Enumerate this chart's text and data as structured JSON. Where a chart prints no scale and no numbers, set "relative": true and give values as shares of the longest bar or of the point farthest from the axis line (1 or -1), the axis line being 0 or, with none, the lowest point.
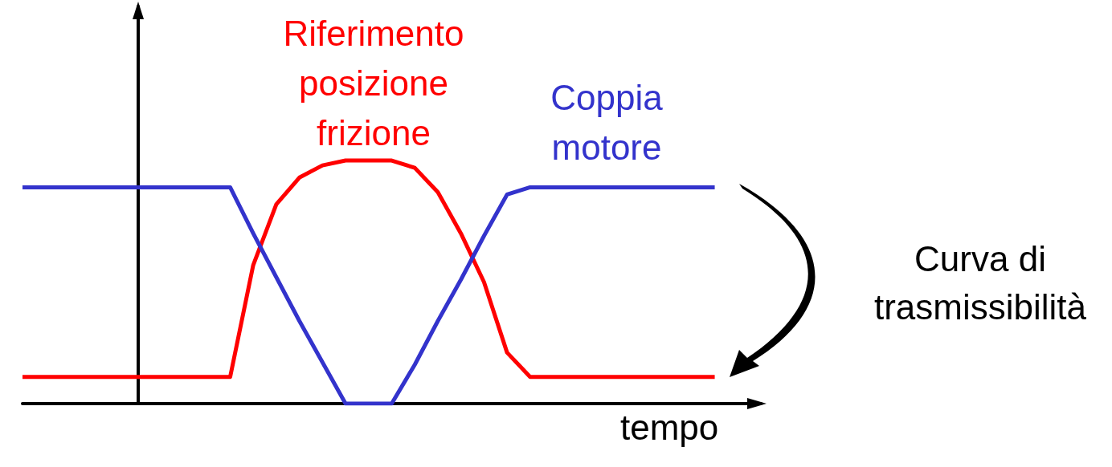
{
  "chart_data": {
    "type": "line",
    "relative": true,
    "xlabel": "tempo",
    "marker": "none",
    "categories": [
      null,
      null,
      null,
      null,
      null,
      null,
      null,
      null,
      null,
      null,
      null,
      null,
      null,
      null,
      null,
      null,
      null,
      null,
      null,
      null,
      null,
      null,
      null,
      null,
      null,
      null,
      null,
      null,
      null,
      null,
      null,
      null,
      null
    ],
    "series": [
      {
        "name": "Riferimento posizione frizione",
        "color": "#ff0000",
        "values": [
          0.11,
          0.11,
          0.11,
          0.11,
          0.11,
          0.11,
          0.11,
          0.11,
          0.11,
          0.11,
          0.57,
          0.82,
          0.93,
          0.98,
          1,
          1,
          1,
          0.97,
          0.87,
          0.7,
          0.5,
          0.21,
          0.11,
          0.11,
          0.11,
          0.11,
          0.11,
          0.11,
          0.11,
          0.11,
          0.11,
          null,
          null
        ]
      },
      {
        "name": "Coppia motore",
        "color": "#3333cc",
        "values": [
          0.89,
          0.89,
          0.89,
          0.89,
          0.89,
          0.89,
          0.89,
          0.89,
          0.89,
          0.89,
          0.7,
          0.52,
          0.34,
          0.17,
          0,
          0,
          0,
          0.16,
          0.34,
          0.51,
          0.69,
          0.86,
          0.89,
          0.89,
          0.89,
          0.89,
          0.89,
          0.89,
          0.89,
          0.89,
          0.89,
          null,
          null
        ]
      }
    ],
    "annotations": [
      "Curva di trasmissibilità"
    ]
  }
}
